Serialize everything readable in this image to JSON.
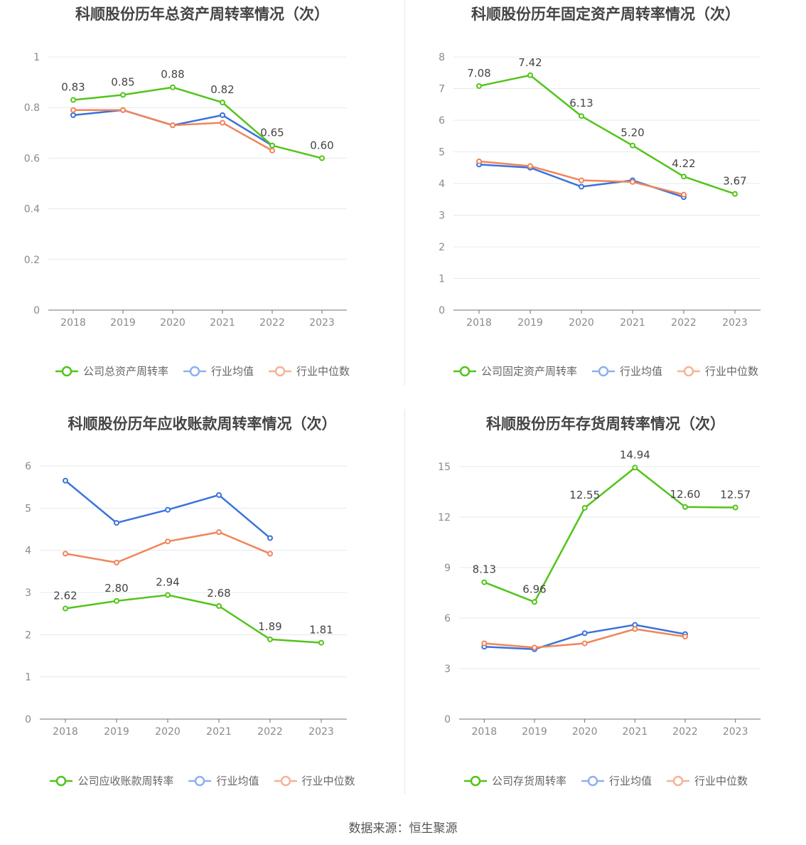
{
  "source": "数据来源：恒生聚源",
  "chart_data": [
    {
      "type": "line",
      "title": "科顺股份历年总资产周转率情况（次）",
      "categories": [
        "2018",
        "2019",
        "2020",
        "2021",
        "2022",
        "2023"
      ],
      "ylim": [
        0,
        1
      ],
      "yticks": [
        "0",
        "0.2",
        "0.4",
        "0.6",
        "0.8",
        "1"
      ],
      "yticks_values": [
        0,
        0.2,
        0.4,
        0.6,
        0.8,
        1
      ],
      "grid": true,
      "legend": "bottom",
      "series": [
        {
          "name": "公司总资产周转率",
          "color": "#52c41a",
          "values": [
            0.83,
            0.85,
            0.88,
            0.82,
            0.65,
            0.6
          ],
          "labels": [
            "0.83",
            "0.85",
            "0.88",
            "0.82",
            "0.65",
            "0.60"
          ]
        },
        {
          "name": "行业均值",
          "color": "#3a73db",
          "values": [
            0.77,
            0.79,
            0.73,
            0.77,
            0.65,
            null
          ]
        },
        {
          "name": "行业中位数",
          "color": "#f0855a",
          "values": [
            0.79,
            0.79,
            0.73,
            0.74,
            0.63,
            null
          ]
        }
      ]
    },
    {
      "type": "line",
      "title": "科顺股份历年固定资产周转率情况（次）",
      "categories": [
        "2018",
        "2019",
        "2020",
        "2021",
        "2022",
        "2023"
      ],
      "ylim": [
        0,
        8
      ],
      "yticks": [
        "0",
        "1",
        "2",
        "3",
        "4",
        "5",
        "6",
        "7",
        "8"
      ],
      "yticks_values": [
        0,
        1,
        2,
        3,
        4,
        5,
        6,
        7,
        8
      ],
      "grid": true,
      "legend": "bottom",
      "series": [
        {
          "name": "公司固定资产周转率",
          "color": "#52c41a",
          "values": [
            7.08,
            7.42,
            6.13,
            5.2,
            4.22,
            3.67
          ],
          "labels": [
            "7.08",
            "7.42",
            "6.13",
            "5.20",
            "4.22",
            "3.67"
          ]
        },
        {
          "name": "行业均值",
          "color": "#3a73db",
          "values": [
            4.6,
            4.5,
            3.9,
            4.1,
            3.57,
            null
          ]
        },
        {
          "name": "行业中位数",
          "color": "#f0855a",
          "values": [
            4.7,
            4.55,
            4.1,
            4.05,
            3.65,
            null
          ]
        }
      ]
    },
    {
      "type": "line",
      "title": "科顺股份历年应收账款周转率情况（次）",
      "categories": [
        "2018",
        "2019",
        "2020",
        "2021",
        "2022",
        "2023"
      ],
      "ylim": [
        0,
        6
      ],
      "yticks": [
        "0",
        "1",
        "2",
        "3",
        "4",
        "5",
        "6"
      ],
      "yticks_values": [
        0,
        1,
        2,
        3,
        4,
        5,
        6
      ],
      "grid": true,
      "legend": "bottom",
      "series": [
        {
          "name": "公司应收账款周转率",
          "color": "#52c41a",
          "values": [
            2.62,
            2.8,
            2.94,
            2.68,
            1.89,
            1.81
          ],
          "labels": [
            "2.62",
            "2.80",
            "2.94",
            "2.68",
            "1.89",
            "1.81"
          ]
        },
        {
          "name": "行业均值",
          "color": "#3a73db",
          "values": [
            5.65,
            4.65,
            4.96,
            5.31,
            4.29,
            null
          ]
        },
        {
          "name": "行业中位数",
          "color": "#f0855a",
          "values": [
            3.92,
            3.71,
            4.21,
            4.43,
            3.92,
            null
          ]
        }
      ]
    },
    {
      "type": "line",
      "title": "科顺股份历年存货周转率情况（次）",
      "categories": [
        "2018",
        "2019",
        "2020",
        "2021",
        "2022",
        "2023"
      ],
      "ylim": [
        0,
        15
      ],
      "yticks": [
        "0",
        "3",
        "6",
        "9",
        "12",
        "15"
      ],
      "yticks_values": [
        0,
        3,
        6,
        9,
        12,
        15
      ],
      "grid": true,
      "legend": "bottom",
      "series": [
        {
          "name": "公司存货周转率",
          "color": "#52c41a",
          "values": [
            8.13,
            6.96,
            12.55,
            14.94,
            12.6,
            12.57
          ],
          "labels": [
            "8.13",
            "6.96",
            "12.55",
            "14.94",
            "12.60",
            "12.57"
          ]
        },
        {
          "name": "行业均值",
          "color": "#3a73db",
          "values": [
            4.3,
            4.15,
            5.1,
            5.6,
            5.05,
            null
          ]
        },
        {
          "name": "行业中位数",
          "color": "#f0855a",
          "values": [
            4.5,
            4.25,
            4.5,
            5.35,
            4.9,
            null
          ]
        }
      ]
    }
  ]
}
